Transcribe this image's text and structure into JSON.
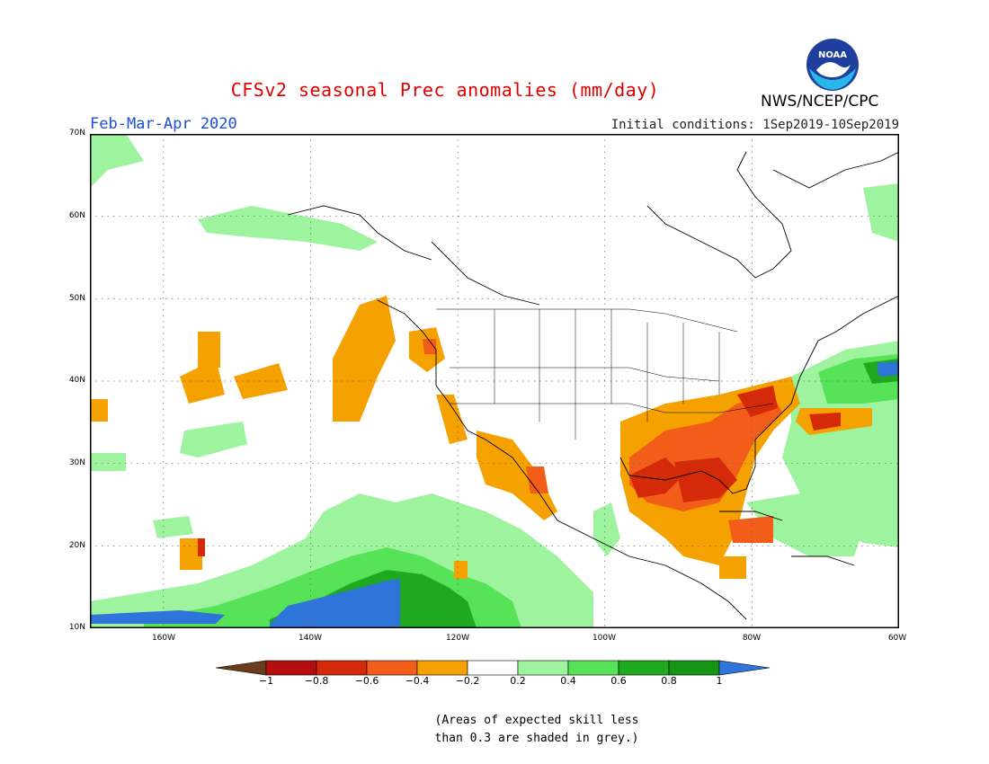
{
  "header": {
    "title": "CFSv2 seasonal Prec anomalies (mm/day)",
    "period": "Feb-Mar-Apr 2020",
    "initial_conditions": "Initial conditions: 1Sep2019-10Sep2019",
    "agency": "NWS/NCEP/CPC",
    "logo_text": "NOAA"
  },
  "map": {
    "lat_labels": [
      "70N",
      "60N",
      "50N",
      "40N",
      "30N",
      "20N",
      "10N"
    ],
    "lon_labels": [
      "160W",
      "140W",
      "120W",
      "100W",
      "80W",
      "60W"
    ],
    "lat_range": [
      10,
      70
    ],
    "lon_range": [
      -170,
      -60
    ],
    "anomaly_regions": [
      {
        "name": "southeast-us-dry",
        "category": "-0.8 to -0.6",
        "color": "#d42a0a"
      },
      {
        "name": "gulf-coast-dry",
        "category": "-0.6 to -0.4",
        "color": "#f25d1a"
      },
      {
        "name": "southern-us-dry",
        "category": "-0.4 to -0.2",
        "color": "#f5a100"
      },
      {
        "name": "eastern-pacific-wet",
        "category": "0.6 to 0.8",
        "color": "#1ea91e"
      },
      {
        "name": "eastern-pacific-very-wet",
        "category": "> 1",
        "color": "#2f74d8"
      }
    ]
  },
  "colorbar": {
    "labels": [
      "−1",
      "−0.8",
      "−0.6",
      "−0.4",
      "−0.2",
      "0.2",
      "0.4",
      "0.6",
      "0.8",
      "1"
    ],
    "colors": [
      "#6b3b1e",
      "#b40e0e",
      "#d42a0a",
      "#f25d1a",
      "#f5a100",
      "#ffffff",
      "#9ef39e",
      "#57e357",
      "#1ea91e",
      "#149614",
      "#2f74d8"
    ]
  },
  "note": {
    "line1": "(Areas of expected skill less",
    "line2": "than 0.3 are shaded in grey.)"
  }
}
